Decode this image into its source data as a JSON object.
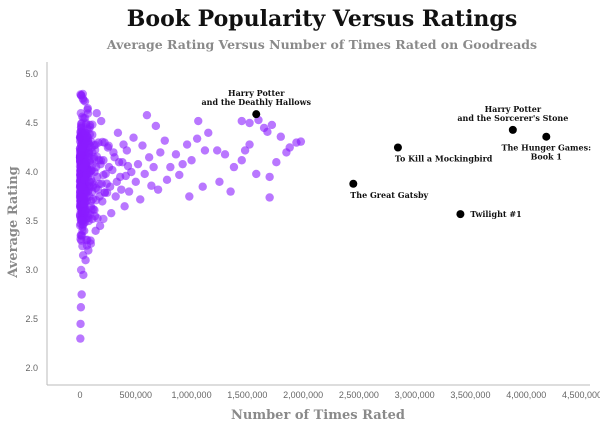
{
  "chart_data": {
    "type": "scatter",
    "title": "Book Popularity Versus Ratings",
    "subtitle": "Average Rating Versus Number of Times Rated on Goodreads",
    "xlabel": "Number of Times Rated",
    "ylabel": "Average Rating",
    "xlim": [
      -80000,
      4700000
    ],
    "ylim": [
      1.95,
      5.05
    ],
    "x_ticks": [
      0,
      500000,
      1000000,
      1500000,
      2000000,
      2500000,
      3000000,
      3500000,
      4000000,
      4500000
    ],
    "x_tick_labels": [
      "0",
      "500,000",
      "1,000,000",
      "1,500,000",
      "2,000,000",
      "2,500,000",
      "3,000,000",
      "3,500,000",
      "4,000,000",
      "4,500,000"
    ],
    "y_ticks": [
      2.0,
      2.5,
      3.0,
      3.5,
      4.0,
      4.5,
      5.0
    ],
    "y_tick_labels": [
      "2.0",
      "2.5",
      "3.0",
      "3.5",
      "4.0",
      "4.5",
      "5.0"
    ],
    "grid": false,
    "colors": {
      "mass_points": "#8a1cff",
      "highlight_points": "#000000",
      "title": "#111111",
      "subtitle": "#8a8a8a"
    },
    "highlighted": [
      {
        "label_lines": [
          "Harry Potter",
          "and the Deathly Hallows"
        ],
        "x": 1580000,
        "y": 4.59,
        "label_pos": "above"
      },
      {
        "label_lines": [
          "Harry Potter",
          "and the Sorcerer's Stone"
        ],
        "x": 3880000,
        "y": 4.43,
        "label_pos": "above"
      },
      {
        "label_lines": [
          "To Kill a Mockingbird"
        ],
        "x": 2850000,
        "y": 4.25,
        "label_pos": "below-right"
      },
      {
        "label_lines": [
          "The Hunger Games:",
          "Book 1"
        ],
        "x": 4180000,
        "y": 4.36,
        "label_pos": "below"
      },
      {
        "label_lines": [
          "The Great Gatsby"
        ],
        "x": 2450000,
        "y": 3.88,
        "label_pos": "below-right"
      },
      {
        "label_lines": [
          "Twilight #1"
        ],
        "x": 3410000,
        "y": 3.57,
        "label_pos": "right"
      }
    ],
    "series": [
      {
        "points": [
          [
            1450000,
            4.52
          ],
          [
            1520000,
            4.5
          ],
          [
            1600000,
            4.53
          ],
          [
            1650000,
            4.45
          ],
          [
            1680000,
            4.41
          ],
          [
            1720000,
            4.48
          ],
          [
            1800000,
            4.36
          ],
          [
            1850000,
            4.2
          ],
          [
            1880000,
            4.25
          ],
          [
            1940000,
            4.3
          ],
          [
            1980000,
            4.31
          ],
          [
            1760000,
            4.1
          ],
          [
            1700000,
            3.95
          ],
          [
            1520000,
            4.28
          ],
          [
            1450000,
            4.12
          ],
          [
            1480000,
            4.22
          ],
          [
            1580000,
            3.98
          ],
          [
            1380000,
            4.05
          ],
          [
            1300000,
            4.18
          ],
          [
            1230000,
            4.22
          ],
          [
            1150000,
            4.4
          ],
          [
            1120000,
            4.22
          ],
          [
            1060000,
            4.52
          ],
          [
            1050000,
            4.34
          ],
          [
            1000000,
            4.12
          ],
          [
            960000,
            4.28
          ],
          [
            920000,
            4.08
          ],
          [
            890000,
            3.97
          ],
          [
            860000,
            4.18
          ],
          [
            810000,
            4.05
          ],
          [
            780000,
            3.92
          ],
          [
            760000,
            4.32
          ],
          [
            720000,
            4.2
          ],
          [
            700000,
            3.82
          ],
          [
            680000,
            4.47
          ],
          [
            660000,
            4.05
          ],
          [
            640000,
            3.86
          ],
          [
            620000,
            4.15
          ],
          [
            600000,
            4.58
          ],
          [
            580000,
            3.98
          ],
          [
            560000,
            4.27
          ],
          [
            540000,
            3.72
          ],
          [
            520000,
            4.08
          ],
          [
            500000,
            3.9
          ],
          [
            480000,
            4.35
          ],
          [
            460000,
            4.0
          ],
          [
            440000,
            3.8
          ],
          [
            420000,
            4.22
          ],
          [
            400000,
            3.65
          ],
          [
            380000,
            4.1
          ],
          [
            360000,
            3.95
          ],
          [
            340000,
            4.4
          ],
          [
            320000,
            3.75
          ],
          [
            300000,
            4.2
          ],
          [
            280000,
            3.58
          ],
          [
            260000,
            4.05
          ],
          [
            240000,
            3.88
          ],
          [
            220000,
            4.3
          ],
          [
            200000,
            3.7
          ],
          [
            190000,
            4.52
          ],
          [
            180000,
            3.45
          ],
          [
            170000,
            4.12
          ],
          [
            160000,
            3.82
          ],
          [
            150000,
            4.6
          ],
          [
            140000,
            3.4
          ],
          [
            130000,
            4.0
          ],
          [
            120000,
            3.62
          ],
          [
            110000,
            4.38
          ],
          [
            100000,
            3.92
          ],
          [
            95000,
            3.3
          ],
          [
            90000,
            4.48
          ],
          [
            85000,
            3.75
          ],
          [
            80000,
            4.15
          ],
          [
            75000,
            3.2
          ],
          [
            70000,
            4.65
          ],
          [
            65000,
            3.55
          ],
          [
            60000,
            3.98
          ],
          [
            55000,
            4.3
          ],
          [
            50000,
            3.1
          ],
          [
            45000,
            4.72
          ],
          [
            40000,
            3.68
          ],
          [
            35000,
            4.05
          ],
          [
            30000,
            2.95
          ],
          [
            25000,
            4.75
          ],
          [
            20000,
            3.5
          ],
          [
            15000,
            2.75
          ],
          [
            10000,
            4.78
          ],
          [
            8000,
            2.62
          ],
          [
            5000,
            2.45
          ],
          [
            3000,
            2.3
          ],
          [
            12000,
            3.3
          ],
          [
            18000,
            3.85
          ],
          [
            22000,
            4.25
          ],
          [
            28000,
            3.15
          ],
          [
            32000,
            4.55
          ],
          [
            38000,
            3.4
          ],
          [
            42000,
            3.92
          ],
          [
            48000,
            4.4
          ],
          [
            52000,
            3.6
          ],
          [
            58000,
            4.1
          ],
          [
            62000,
            3.25
          ],
          [
            68000,
            4.35
          ],
          [
            72000,
            3.8
          ],
          [
            78000,
            3.5
          ],
          [
            82000,
            4.2
          ],
          [
            88000,
            3.9
          ],
          [
            92000,
            4.0
          ],
          [
            98000,
            3.65
          ],
          [
            105000,
            4.25
          ],
          [
            115000,
            3.85
          ],
          [
            125000,
            4.15
          ],
          [
            135000,
            3.55
          ],
          [
            145000,
            4.05
          ],
          [
            155000,
            3.95
          ],
          [
            165000,
            4.3
          ],
          [
            175000,
            3.75
          ],
          [
            185000,
            4.08
          ],
          [
            195000,
            3.88
          ],
          [
            210000,
            4.12
          ],
          [
            230000,
            3.98
          ],
          [
            250000,
            4.25
          ],
          [
            270000,
            3.85
          ],
          [
            290000,
            4.02
          ],
          [
            310000,
            4.15
          ],
          [
            330000,
            3.9
          ],
          [
            350000,
            4.1
          ],
          [
            370000,
            3.82
          ],
          [
            390000,
            4.28
          ],
          [
            410000,
            3.96
          ],
          [
            430000,
            4.06
          ],
          [
            1350000,
            3.8
          ],
          [
            1250000,
            3.9
          ],
          [
            1100000,
            3.85
          ],
          [
            980000,
            3.75
          ],
          [
            1700000,
            3.74
          ]
        ]
      }
    ]
  }
}
